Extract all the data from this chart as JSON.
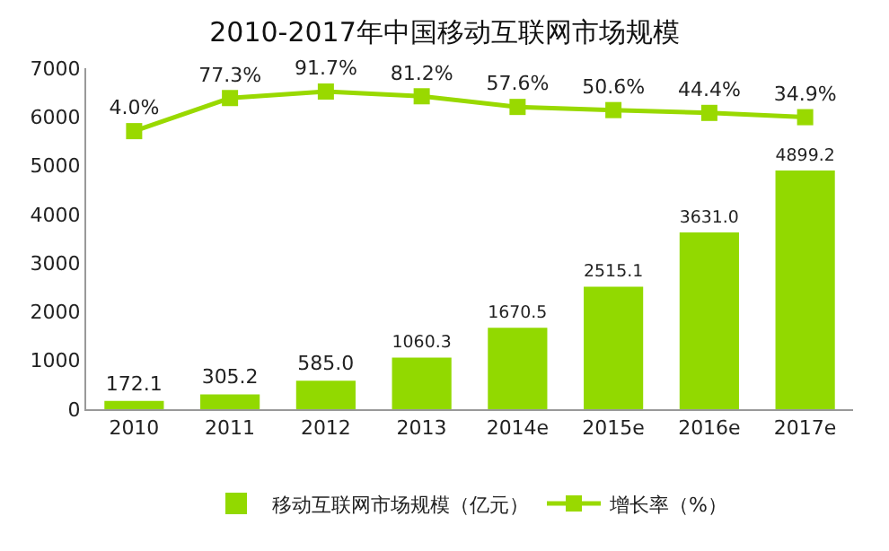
{
  "chart_data": {
    "type": "bar",
    "title": "2010-2017年中国移动互联网市场规模",
    "categories": [
      "2010",
      "2011",
      "2012",
      "2013",
      "2014e",
      "2015e",
      "2016e",
      "2017e"
    ],
    "series": [
      {
        "name": "移动互联网市场规模（亿元）",
        "color": "#92d900",
        "values": [
          172.1,
          305.2,
          585.0,
          1060.3,
          1670.5,
          2515.1,
          3631.0,
          4899.2
        ],
        "value_labels": [
          "172.1",
          "305.2",
          "585.0",
          "1060.3",
          "1670.5",
          "2515.1",
          "3631.0",
          "4899.2"
        ]
      },
      {
        "name": "增长率（%）",
        "type": "line",
        "axis": "y2",
        "color": "#99d900",
        "marker": "square",
        "values": [
          4.0,
          77.3,
          91.7,
          81.2,
          57.6,
          50.6,
          44.4,
          34.9
        ],
        "value_labels": [
          "4.0%",
          "77.3%",
          "91.7%",
          "81.2%",
          "57.6%",
          "50.6%",
          "44.4%",
          "34.9%"
        ]
      }
    ],
    "ylim": [
      0,
      7000
    ],
    "yticks": [
      0,
      1000,
      2000,
      3000,
      4000,
      5000,
      6000,
      7000
    ],
    "y2lim": [
      -612,
      143.4
    ],
    "grid": false,
    "legend": "bottom"
  }
}
